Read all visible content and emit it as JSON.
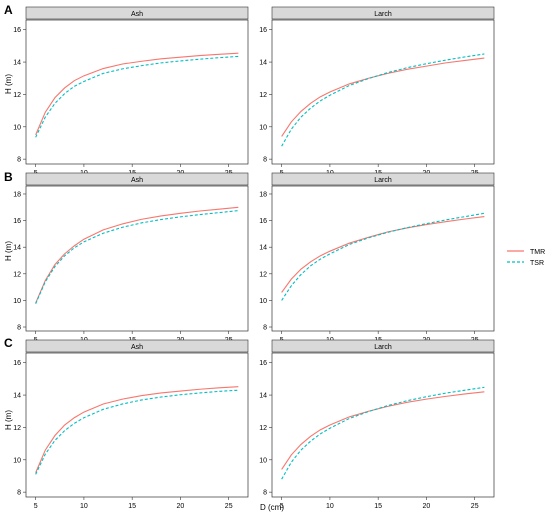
{
  "figure": {
    "row_labels": [
      "A",
      "B",
      "C"
    ],
    "xlabel": "D (cm)",
    "ylabel": "H (m)",
    "legend": [
      {
        "name": "TMR",
        "color": "#F8766D",
        "dash": "solid"
      },
      {
        "name": "TSR",
        "color": "#00BFC4",
        "dash": "dashed"
      }
    ]
  },
  "chart_data": [
    {
      "type": "line",
      "panel_title": "Ash",
      "row": "A",
      "xlim": [
        4,
        27
      ],
      "ylim": [
        7.7,
        16.6
      ],
      "xticks": [
        5,
        10,
        15,
        20,
        25
      ],
      "yticks": [
        8,
        10,
        12,
        14,
        16
      ],
      "x": [
        5,
        6,
        7,
        8,
        9,
        10,
        12,
        14,
        16,
        18,
        20,
        22,
        24,
        26
      ],
      "series": [
        {
          "name": "TMR",
          "values": [
            9.5,
            10.9,
            11.8,
            12.4,
            12.85,
            13.15,
            13.6,
            13.88,
            14.05,
            14.2,
            14.3,
            14.4,
            14.48,
            14.55
          ]
        },
        {
          "name": "TSR",
          "values": [
            9.35,
            10.6,
            11.45,
            12.05,
            12.5,
            12.8,
            13.3,
            13.58,
            13.78,
            13.95,
            14.07,
            14.18,
            14.27,
            14.35
          ]
        }
      ]
    },
    {
      "type": "line",
      "panel_title": "Larch",
      "row": "A",
      "xlim": [
        4,
        27
      ],
      "ylim": [
        7.7,
        16.6
      ],
      "xticks": [
        5,
        10,
        15,
        20,
        25
      ],
      "yticks": [
        8,
        10,
        12,
        14,
        16
      ],
      "x": [
        5,
        6,
        7,
        8,
        9,
        10,
        12,
        14,
        16,
        18,
        20,
        22,
        24,
        26
      ],
      "series": [
        {
          "name": "TMR",
          "values": [
            9.4,
            10.3,
            10.95,
            11.45,
            11.85,
            12.15,
            12.65,
            13.0,
            13.3,
            13.55,
            13.75,
            13.95,
            14.1,
            14.25
          ]
        },
        {
          "name": "TSR",
          "values": [
            8.8,
            9.85,
            10.6,
            11.15,
            11.6,
            11.95,
            12.55,
            12.98,
            13.35,
            13.65,
            13.9,
            14.12,
            14.32,
            14.5
          ]
        }
      ]
    },
    {
      "type": "line",
      "panel_title": "Ash",
      "row": "B",
      "xlim": [
        4,
        27
      ],
      "ylim": [
        7.7,
        18.6
      ],
      "xticks": [
        5,
        10,
        15,
        20,
        25
      ],
      "yticks": [
        8,
        10,
        12,
        14,
        16,
        18
      ],
      "x": [
        5,
        6,
        7,
        8,
        9,
        10,
        12,
        14,
        16,
        18,
        20,
        22,
        24,
        26
      ],
      "series": [
        {
          "name": "TMR",
          "values": [
            9.8,
            11.5,
            12.7,
            13.5,
            14.1,
            14.6,
            15.3,
            15.75,
            16.1,
            16.35,
            16.55,
            16.72,
            16.86,
            17.0
          ]
        },
        {
          "name": "TSR",
          "values": [
            9.75,
            11.4,
            12.55,
            13.35,
            13.95,
            14.4,
            15.05,
            15.5,
            15.83,
            16.08,
            16.28,
            16.45,
            16.6,
            16.75
          ]
        }
      ]
    },
    {
      "type": "line",
      "panel_title": "Larch",
      "row": "B",
      "xlim": [
        4,
        27
      ],
      "ylim": [
        7.7,
        18.6
      ],
      "xticks": [
        5,
        10,
        15,
        20,
        25
      ],
      "yticks": [
        8,
        10,
        12,
        14,
        16,
        18
      ],
      "x": [
        5,
        6,
        7,
        8,
        9,
        10,
        12,
        14,
        16,
        18,
        20,
        22,
        24,
        26
      ],
      "series": [
        {
          "name": "TMR",
          "values": [
            10.6,
            11.6,
            12.35,
            12.9,
            13.35,
            13.7,
            14.3,
            14.75,
            15.15,
            15.45,
            15.7,
            15.92,
            16.12,
            16.3
          ]
        },
        {
          "name": "TSR",
          "values": [
            10.0,
            11.1,
            11.95,
            12.6,
            13.1,
            13.5,
            14.2,
            14.7,
            15.12,
            15.47,
            15.77,
            16.05,
            16.3,
            16.55
          ]
        }
      ]
    },
    {
      "type": "line",
      "panel_title": "Ash",
      "row": "C",
      "xlim": [
        4,
        27
      ],
      "ylim": [
        7.7,
        16.6
      ],
      "xticks": [
        5,
        10,
        15,
        20,
        25
      ],
      "yticks": [
        8,
        10,
        12,
        14,
        16
      ],
      "x": [
        5,
        6,
        7,
        8,
        9,
        10,
        12,
        14,
        16,
        18,
        20,
        22,
        24,
        26
      ],
      "series": [
        {
          "name": "TMR",
          "values": [
            9.2,
            10.6,
            11.5,
            12.15,
            12.6,
            12.95,
            13.45,
            13.75,
            13.97,
            14.13,
            14.25,
            14.36,
            14.45,
            14.52
          ]
        },
        {
          "name": "TSR",
          "values": [
            9.1,
            10.35,
            11.2,
            11.8,
            12.25,
            12.6,
            13.12,
            13.45,
            13.7,
            13.88,
            14.02,
            14.13,
            14.23,
            14.3
          ]
        }
      ]
    },
    {
      "type": "line",
      "panel_title": "Larch",
      "row": "C",
      "xlim": [
        4,
        27
      ],
      "ylim": [
        7.7,
        16.6
      ],
      "xticks": [
        5,
        10,
        15,
        20,
        25
      ],
      "yticks": [
        8,
        10,
        12,
        14,
        16
      ],
      "x": [
        5,
        6,
        7,
        8,
        9,
        10,
        12,
        14,
        16,
        18,
        20,
        22,
        24,
        26
      ],
      "series": [
        {
          "name": "TMR",
          "values": [
            9.4,
            10.3,
            10.95,
            11.45,
            11.85,
            12.15,
            12.65,
            13.0,
            13.3,
            13.55,
            13.75,
            13.92,
            14.07,
            14.2
          ]
        },
        {
          "name": "TSR",
          "values": [
            8.8,
            9.85,
            10.6,
            11.15,
            11.6,
            11.95,
            12.55,
            12.98,
            13.35,
            13.65,
            13.9,
            14.12,
            14.3,
            14.48
          ]
        }
      ]
    }
  ]
}
